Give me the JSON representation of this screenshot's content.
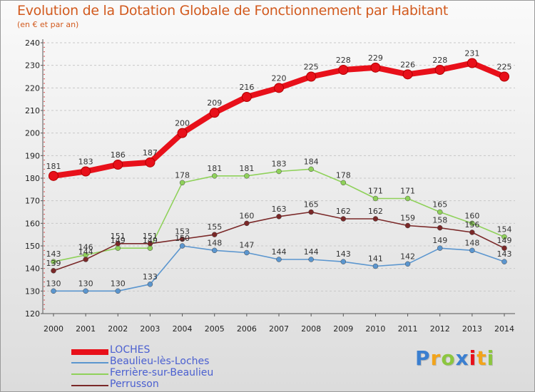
{
  "title": "Evolution de la Dotation Globale de Fonctionnement par Habitant",
  "subtitle": "(en € et par an)",
  "brand": "Proxiti",
  "colors": {
    "title": "#d25a1e",
    "legend_text": "#4a5fd0",
    "grid": "#c8c8c8",
    "axis": "#555555",
    "tick_text": "#222222"
  },
  "chart_data": {
    "type": "line",
    "x": [
      2000,
      2001,
      2002,
      2003,
      2004,
      2005,
      2006,
      2007,
      2008,
      2009,
      2010,
      2011,
      2012,
      2013,
      2014
    ],
    "ylim": [
      120,
      240
    ],
    "y_ticks": [
      120,
      130,
      140,
      150,
      160,
      170,
      180,
      190,
      200,
      210,
      220,
      230,
      240
    ],
    "grid": "horizontal dashed",
    "legend_position": "bottom-left",
    "series": [
      {
        "name": "LOCHES",
        "color": "#e8101a",
        "emphasis": true,
        "values": [
          181,
          183,
          186,
          187,
          200,
          209,
          216,
          220,
          225,
          228,
          229,
          226,
          228,
          231,
          225
        ]
      },
      {
        "name": "Beaulieu-lès-Loches",
        "color": "#5b96cf",
        "emphasis": false,
        "values": [
          130,
          130,
          130,
          133,
          150,
          148,
          147,
          144,
          144,
          143,
          141,
          142,
          149,
          148,
          143
        ]
      },
      {
        "name": "Ferrière-sur-Beaulieu",
        "color": "#8fd15a",
        "emphasis": false,
        "values": [
          143,
          146,
          149,
          149,
          178,
          181,
          181,
          183,
          184,
          178,
          171,
          171,
          165,
          160,
          154
        ]
      },
      {
        "name": "Perrusson",
        "color": "#7a2828",
        "emphasis": false,
        "values": [
          139,
          144,
          151,
          151,
          153,
          155,
          160,
          163,
          165,
          162,
          162,
          159,
          158,
          156,
          149
        ]
      }
    ]
  }
}
